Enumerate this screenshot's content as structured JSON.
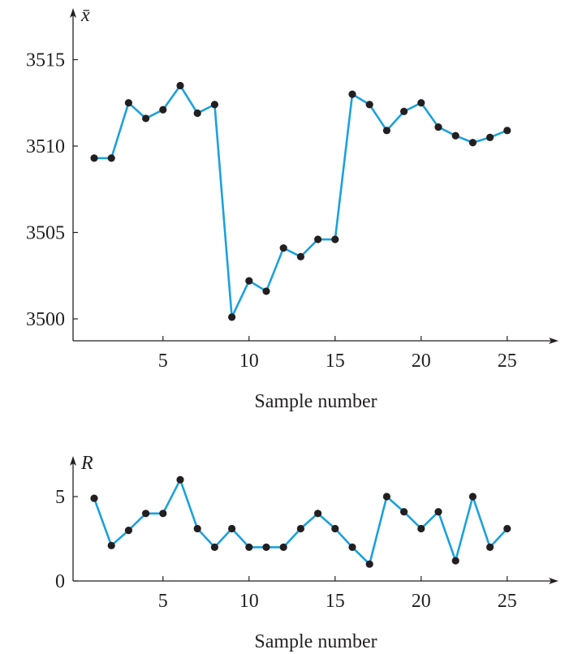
{
  "chart_data": [
    {
      "type": "line",
      "ylabel": "x̄",
      "xlabel": "Sample number",
      "x": [
        1,
        2,
        3,
        4,
        5,
        6,
        7,
        8,
        9,
        10,
        11,
        12,
        13,
        14,
        15,
        16,
        17,
        18,
        19,
        20,
        21,
        22,
        23,
        24,
        25
      ],
      "values": [
        3509.3,
        3509.3,
        3512.5,
        3511.6,
        3512.1,
        3513.5,
        3511.9,
        3512.4,
        3500.1,
        3502.2,
        3501.6,
        3504.1,
        3503.6,
        3504.6,
        3504.6,
        3513.0,
        3512.4,
        3510.9,
        3512.0,
        3512.5,
        3511.1,
        3510.6,
        3510.2,
        3510.5,
        3510.9
      ],
      "xticks": [
        "5",
        "10",
        "15",
        "20",
        "25"
      ],
      "yticks": [
        "3500",
        "3505",
        "3510",
        "3515"
      ],
      "ylim": [
        3498.7,
        3517.5
      ],
      "xlim": [
        0,
        28
      ],
      "grid": false,
      "line_color": "#1ba1dd",
      "marker_color": "#231f20"
    },
    {
      "type": "line",
      "ylabel": "R",
      "xlabel": "Sample number",
      "x": [
        1,
        2,
        3,
        4,
        5,
        6,
        7,
        8,
        9,
        10,
        11,
        12,
        13,
        14,
        15,
        16,
        17,
        18,
        19,
        20,
        21,
        22,
        23,
        24,
        25
      ],
      "values": [
        4.9,
        2.1,
        3,
        4,
        4,
        6,
        3.1,
        2,
        3.1,
        2,
        2,
        2,
        3.1,
        4,
        3.1,
        2,
        1,
        5,
        4.1,
        3.1,
        4.1,
        1.2,
        5,
        2,
        3.1
      ],
      "xticks": [
        "5",
        "10",
        "15",
        "20",
        "25"
      ],
      "yticks": [
        "0",
        "5"
      ],
      "ylim": [
        0,
        6.5
      ],
      "xlim": [
        0,
        28
      ],
      "grid": false,
      "line_color": "#1ba1dd",
      "marker_color": "#231f20"
    }
  ]
}
